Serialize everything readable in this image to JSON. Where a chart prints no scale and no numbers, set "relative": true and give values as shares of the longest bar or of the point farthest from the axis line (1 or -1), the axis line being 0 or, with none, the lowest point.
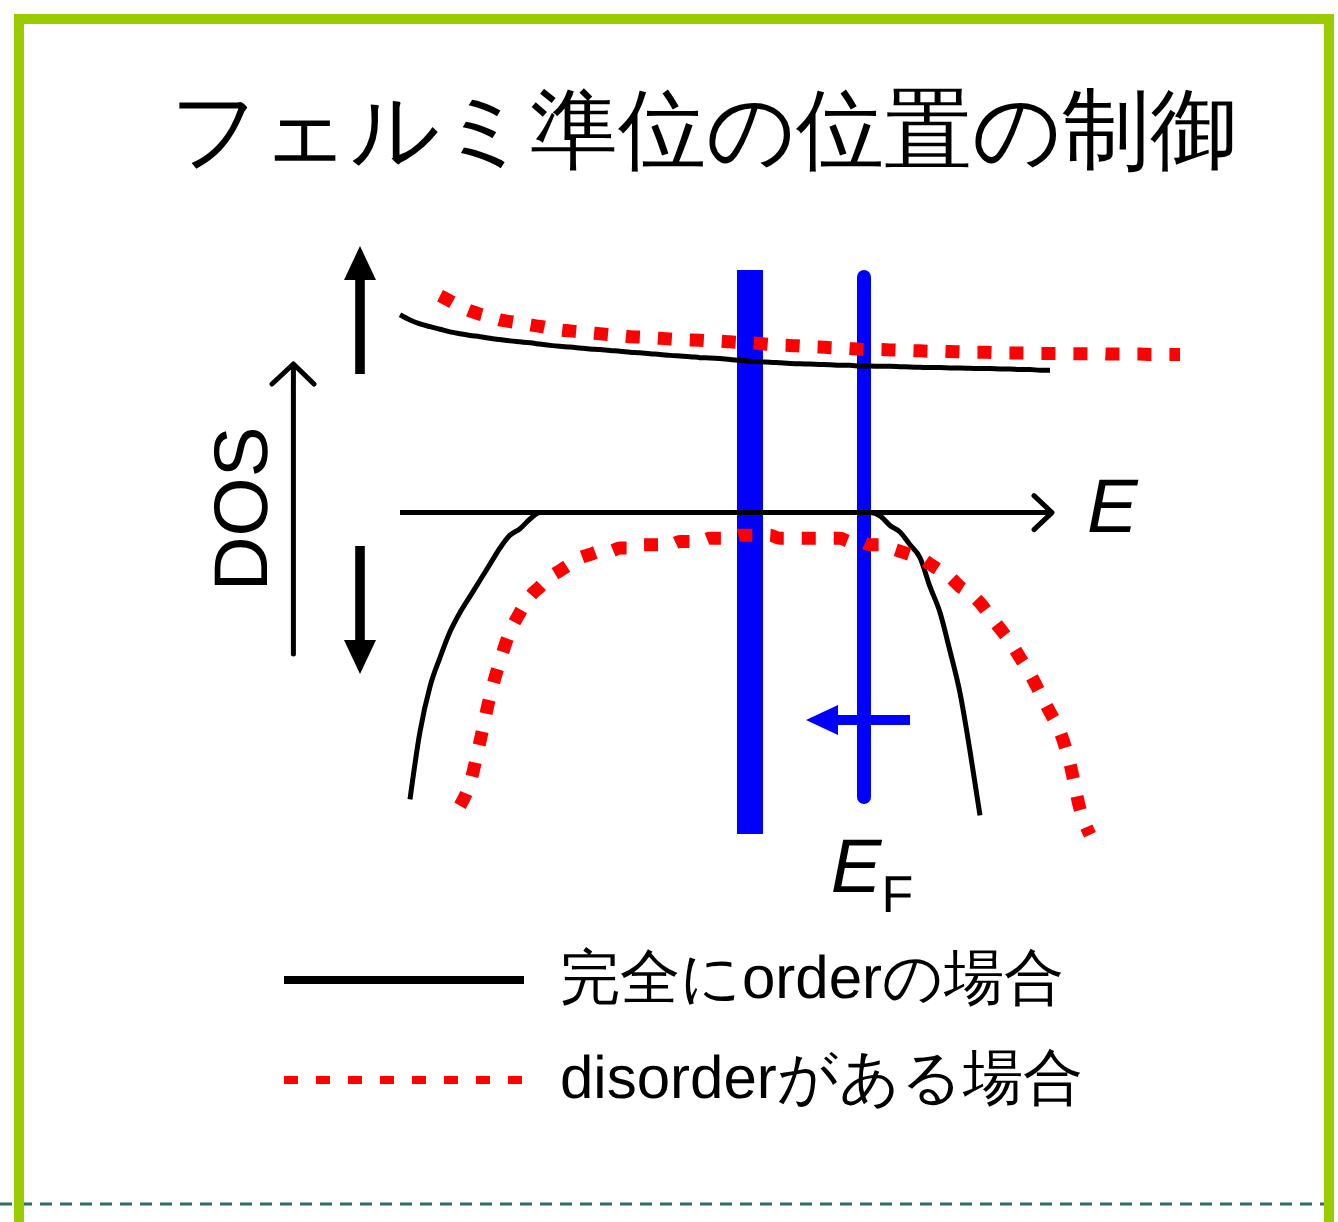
{
  "chart_data": {
    "type": "line",
    "title": "フェルミ準位の位置の制御",
    "xlabel": "E",
    "ylabel": "DOS",
    "relative": true,
    "legend": "bottom",
    "categories": [
      null,
      null,
      null,
      null,
      null,
      null,
      null,
      null,
      null,
      null,
      null,
      null,
      null,
      null,
      null,
      null,
      null,
      null,
      null,
      null,
      null,
      null,
      null,
      null,
      null,
      null,
      null,
      null,
      null,
      null,
      null,
      null,
      null,
      null,
      null,
      null,
      null,
      null,
      null,
      null,
      null,
      null,
      null,
      null,
      null,
      null,
      null,
      null,
      null,
      null,
      null,
      null,
      null,
      null,
      null,
      null,
      null,
      null,
      null,
      null,
      null,
      null,
      null,
      null,
      null,
      null,
      null,
      null,
      null,
      null,
      null,
      null,
      null,
      null,
      null,
      null,
      null,
      null,
      null
    ],
    "series": [
      {
        "name": "完全にorderの場合",
        "color": "#000000",
        "line_style": "solid",
        "values": [
          0.614,
          0.598,
          0.586,
          0.577,
          0.569,
          0.561,
          0.555,
          0.55,
          0.546,
          0.541,
          0.537,
          0.533,
          0.53,
          0.527,
          0.523,
          0.519,
          0.516,
          0.514,
          0.511,
          0.508,
          0.506,
          0.503,
          0.501,
          0.498,
          0.496,
          0.493,
          0.491,
          0.488,
          0.486,
          0.484,
          0.481,
          0.48,
          0.478,
          0.475,
          0.473,
          0.47,
          0.468,
          0.467,
          0.465,
          0.463,
          0.462,
          0.461,
          0.46,
          0.459,
          0.457,
          0.457,
          0.455,
          0.455,
          0.454,
          0.454,
          0.453,
          0.452,
          0.451,
          0.45,
          0.45,
          0.449,
          0.449,
          0.448,
          0.447,
          0.447,
          0.446,
          0.446,
          0.444,
          0.444,
          0.442,
          0.442,
          null,
          null,
          null,
          null,
          null,
          null,
          null,
          null,
          null,
          null,
          null,
          null,
          null
        ]
      },
      {
        "color": "#000000",
        "line_style": "solid",
        "values": [
          null,
          -0.89,
          -0.68,
          -0.54,
          -0.45,
          -0.37,
          -0.31,
          -0.26,
          -0.21,
          -0.16,
          -0.11,
          -0.07,
          -0.05,
          -0.02,
          0,
          0,
          0,
          0,
          0,
          0,
          0,
          0,
          0,
          0,
          0,
          0,
          0,
          0,
          0,
          0,
          0,
          0,
          0,
          0,
          0,
          0,
          0,
          0,
          0,
          0,
          0,
          0,
          0,
          0,
          0,
          0,
          0,
          0,
          -0.01,
          -0.04,
          -0.06,
          -0.1,
          -0.14,
          -0.23,
          -0.31,
          -0.43,
          -0.56,
          -0.74,
          -0.94,
          null,
          null,
          null,
          null,
          null,
          null,
          null,
          null,
          null,
          null,
          null,
          null,
          null,
          null,
          null,
          null,
          null,
          null,
          null,
          null
        ]
      },
      {
        "name": "disorderがある場合",
        "color": "#ff0000",
        "line_style": "dotted",
        "values": [
          null,
          null,
          null,
          null,
          0.673,
          0.657,
          0.64,
          0.626,
          0.616,
          0.608,
          0.598,
          0.593,
          0.588,
          0.583,
          0.578,
          0.572,
          0.567,
          0.564,
          0.561,
          0.558,
          0.555,
          0.552,
          0.549,
          0.546,
          0.545,
          0.543,
          0.541,
          0.539,
          0.537,
          0.536,
          0.535,
          0.533,
          0.532,
          0.53,
          0.528,
          0.527,
          0.525,
          0.522,
          0.52,
          0.519,
          0.517,
          0.515,
          0.514,
          0.512,
          0.511,
          0.509,
          0.507,
          0.506,
          0.506,
          0.505,
          0.504,
          0.503,
          0.502,
          0.501,
          0.501,
          0.5,
          0.499,
          0.498,
          0.498,
          0.497,
          0.496,
          0.495,
          0.495,
          0.495,
          0.494,
          0.494,
          0.494,
          0.493,
          0.493,
          0.493,
          0.493,
          0.492,
          0.492,
          0.492,
          0.492,
          0.491,
          0.491,
          0.491,
          0.491
        ]
      },
      {
        "color": "#ff0000",
        "line_style": "dotted",
        "values": [
          null,
          null,
          null,
          null,
          null,
          null,
          -0.91,
          -0.84,
          -0.71,
          -0.57,
          -0.46,
          -0.37,
          -0.31,
          -0.26,
          -0.23,
          -0.2,
          -0.18,
          -0.16,
          -0.14,
          -0.13,
          -0.12,
          -0.12,
          -0.11,
          -0.11,
          -0.1,
          -0.1,
          -0.1,
          -0.1,
          -0.09,
          -0.09,
          -0.09,
          -0.08,
          -0.08,
          -0.08,
          -0.07,
          -0.07,
          -0.07,
          -0.07,
          -0.08,
          -0.08,
          -0.08,
          -0.08,
          -0.08,
          -0.08,
          -0.08,
          -0.09,
          -0.09,
          -0.1,
          -0.1,
          -0.11,
          -0.12,
          -0.13,
          -0.14,
          -0.16,
          -0.18,
          -0.2,
          -0.23,
          -0.25,
          -0.28,
          -0.32,
          -0.36,
          -0.4,
          -0.45,
          -0.5,
          -0.56,
          -0.62,
          -0.68,
          -0.78,
          -0.92,
          -1,
          null,
          null,
          null,
          null,
          null,
          null,
          null,
          null,
          null
        ]
      }
    ],
    "annotations": [
      "E$_{F}$"
    ]
  }
}
